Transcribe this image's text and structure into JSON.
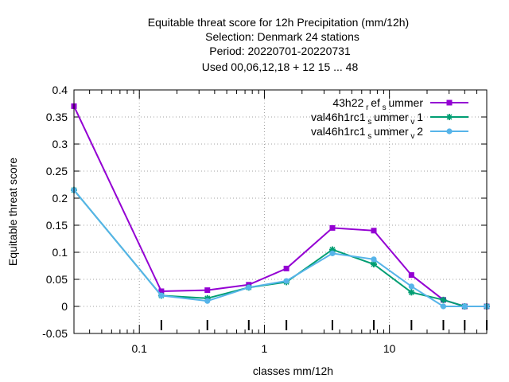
{
  "chart_data": {
    "type": "line",
    "title_lines": [
      "Equitable threat score  for 12h Precipitation (mm/12h)",
      "Selection: Denmark     24 stations",
      "Period: 20220701-20220731",
      "Used  00,06,12,18  + 12 15 ... 48"
    ],
    "xlabel": "classes mm/12h",
    "ylabel": "Equitable threat score",
    "x_scale": "log",
    "xlim": [
      0.03,
      60
    ],
    "ylim": [
      -0.05,
      0.4
    ],
    "y_ticks": [
      "-0.05",
      "0",
      "0.05",
      "0.1",
      "0.15",
      "0.2",
      "0.25",
      "0.3",
      "0.35",
      "0.4"
    ],
    "x_tick_labels": [
      "0.1",
      "1",
      "10"
    ],
    "grid": true,
    "legend_position": "top-right",
    "x": [
      0.03,
      0.15,
      0.35,
      0.75,
      1.5,
      3.5,
      7.5,
      15,
      27,
      40,
      60
    ],
    "series": [
      {
        "name": "43h22_ref_summer",
        "legend": {
          "base": "43h22",
          "s1": "r",
          "t1": "ef",
          "s2": "s",
          "t2": "ummer",
          "s3": "",
          "t3": ""
        },
        "color": "#9400d3",
        "marker": "square",
        "values": [
          0.37,
          0.028,
          0.03,
          0.04,
          0.07,
          0.145,
          0.14,
          0.058,
          0.012,
          0.0,
          0.0
        ]
      },
      {
        "name": "val46h1rc1_summer_v1",
        "legend": {
          "base": "val46h1rc1",
          "s1": "s",
          "t1": "ummer",
          "s2": "v",
          "t2": "1",
          "s3": "",
          "t3": ""
        },
        "color": "#009e73",
        "marker": "star",
        "values": [
          0.215,
          0.02,
          0.015,
          0.035,
          0.045,
          0.105,
          0.078,
          0.026,
          0.012,
          0.0,
          0.0
        ]
      },
      {
        "name": "val46h1rc1_summer_v2",
        "legend": {
          "base": "val46h1rc1",
          "s1": "s",
          "t1": "ummer",
          "s2": "v",
          "t2": "2",
          "s3": "",
          "t3": ""
        },
        "color": "#56b4e9",
        "marker": "circle",
        "values": [
          0.215,
          0.02,
          0.01,
          0.035,
          0.047,
          0.098,
          0.087,
          0.037,
          0.0,
          0.0,
          0.0
        ]
      }
    ]
  }
}
